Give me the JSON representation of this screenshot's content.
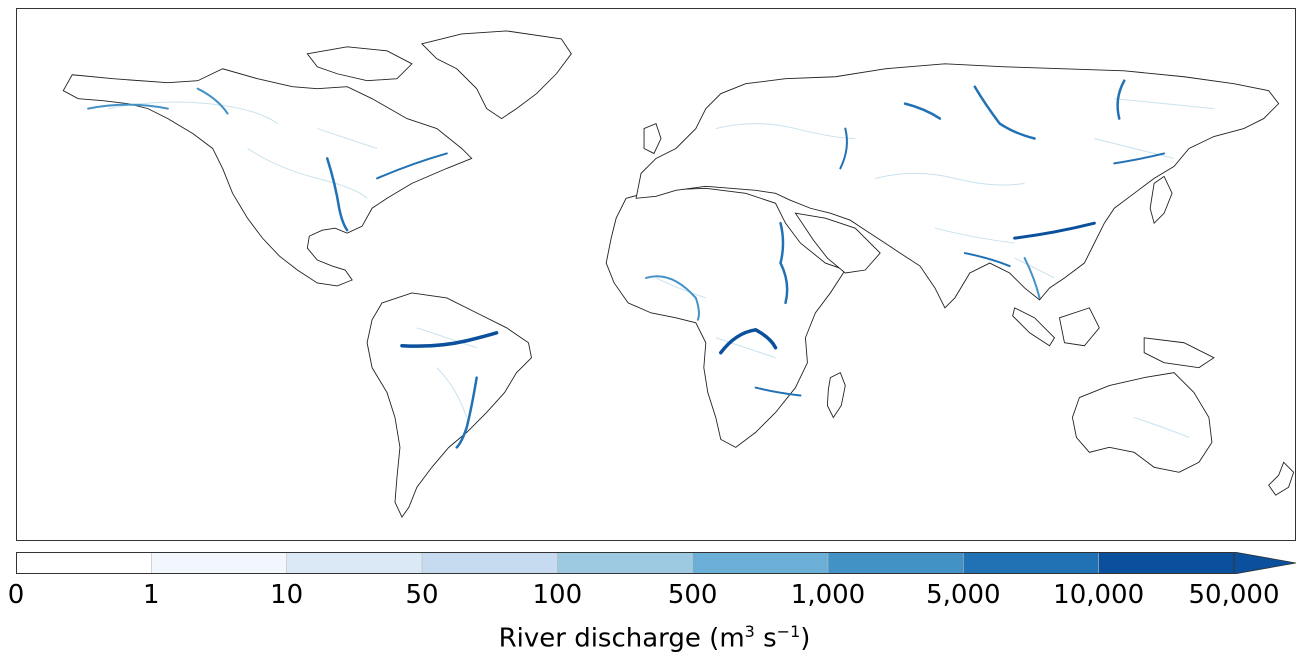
{
  "colorbar": {
    "title_prefix": "River discharge (m",
    "title_sup1": "3",
    "title_mid": " s",
    "title_sup2": "−1",
    "title_suffix": ")",
    "ticks": [
      "0",
      "1",
      "10",
      "50",
      "100",
      "500",
      "1,000",
      "5,000",
      "10,000",
      "50,000"
    ],
    "colors": [
      "#ffffff",
      "#f2f7fd",
      "#dbe8f6",
      "#c6dbef",
      "#9ecae1",
      "#6baed6",
      "#4292c6",
      "#2171b5",
      "#0b509c"
    ],
    "extend": "max"
  },
  "map": {
    "projection": "plate carree",
    "land_color": "#ffffff",
    "coastline_color": "#222222",
    "river_color_scale": "Blues"
  }
}
